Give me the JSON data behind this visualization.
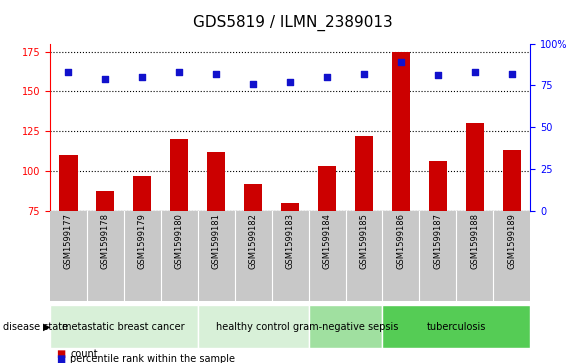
{
  "title": "GDS5819 / ILMN_2389013",
  "samples": [
    "GSM1599177",
    "GSM1599178",
    "GSM1599179",
    "GSM1599180",
    "GSM1599181",
    "GSM1599182",
    "GSM1599183",
    "GSM1599184",
    "GSM1599185",
    "GSM1599186",
    "GSM1599187",
    "GSM1599188",
    "GSM1599189"
  ],
  "counts": [
    110,
    87,
    97,
    120,
    112,
    92,
    80,
    103,
    122,
    175,
    106,
    130,
    113
  ],
  "percentiles": [
    83,
    79,
    80,
    83,
    82,
    76,
    77,
    80,
    82,
    89,
    81,
    83,
    82
  ],
  "bar_color": "#cc0000",
  "dot_color": "#1111cc",
  "ylim_left": [
    75,
    180
  ],
  "ylim_right": [
    0,
    100
  ],
  "yticks_left": [
    75,
    100,
    125,
    150,
    175
  ],
  "yticks_right": [
    0,
    25,
    50,
    75,
    100
  ],
  "disease_groups": [
    {
      "label": "metastatic breast cancer",
      "start": 0,
      "end": 4,
      "color": "#d8f0d8"
    },
    {
      "label": "healthy control",
      "start": 4,
      "end": 7,
      "color": "#d8f0d8"
    },
    {
      "label": "gram-negative sepsis",
      "start": 7,
      "end": 9,
      "color": "#a0e0a0"
    },
    {
      "label": "tuberculosis",
      "start": 9,
      "end": 13,
      "color": "#55cc55"
    }
  ],
  "disease_state_label": "disease state",
  "legend_count_label": "count",
  "legend_percentile_label": "percentile rank within the sample",
  "title_fontsize": 11,
  "tick_fontsize": 7,
  "sample_fontsize": 6,
  "group_fontsize": 7
}
